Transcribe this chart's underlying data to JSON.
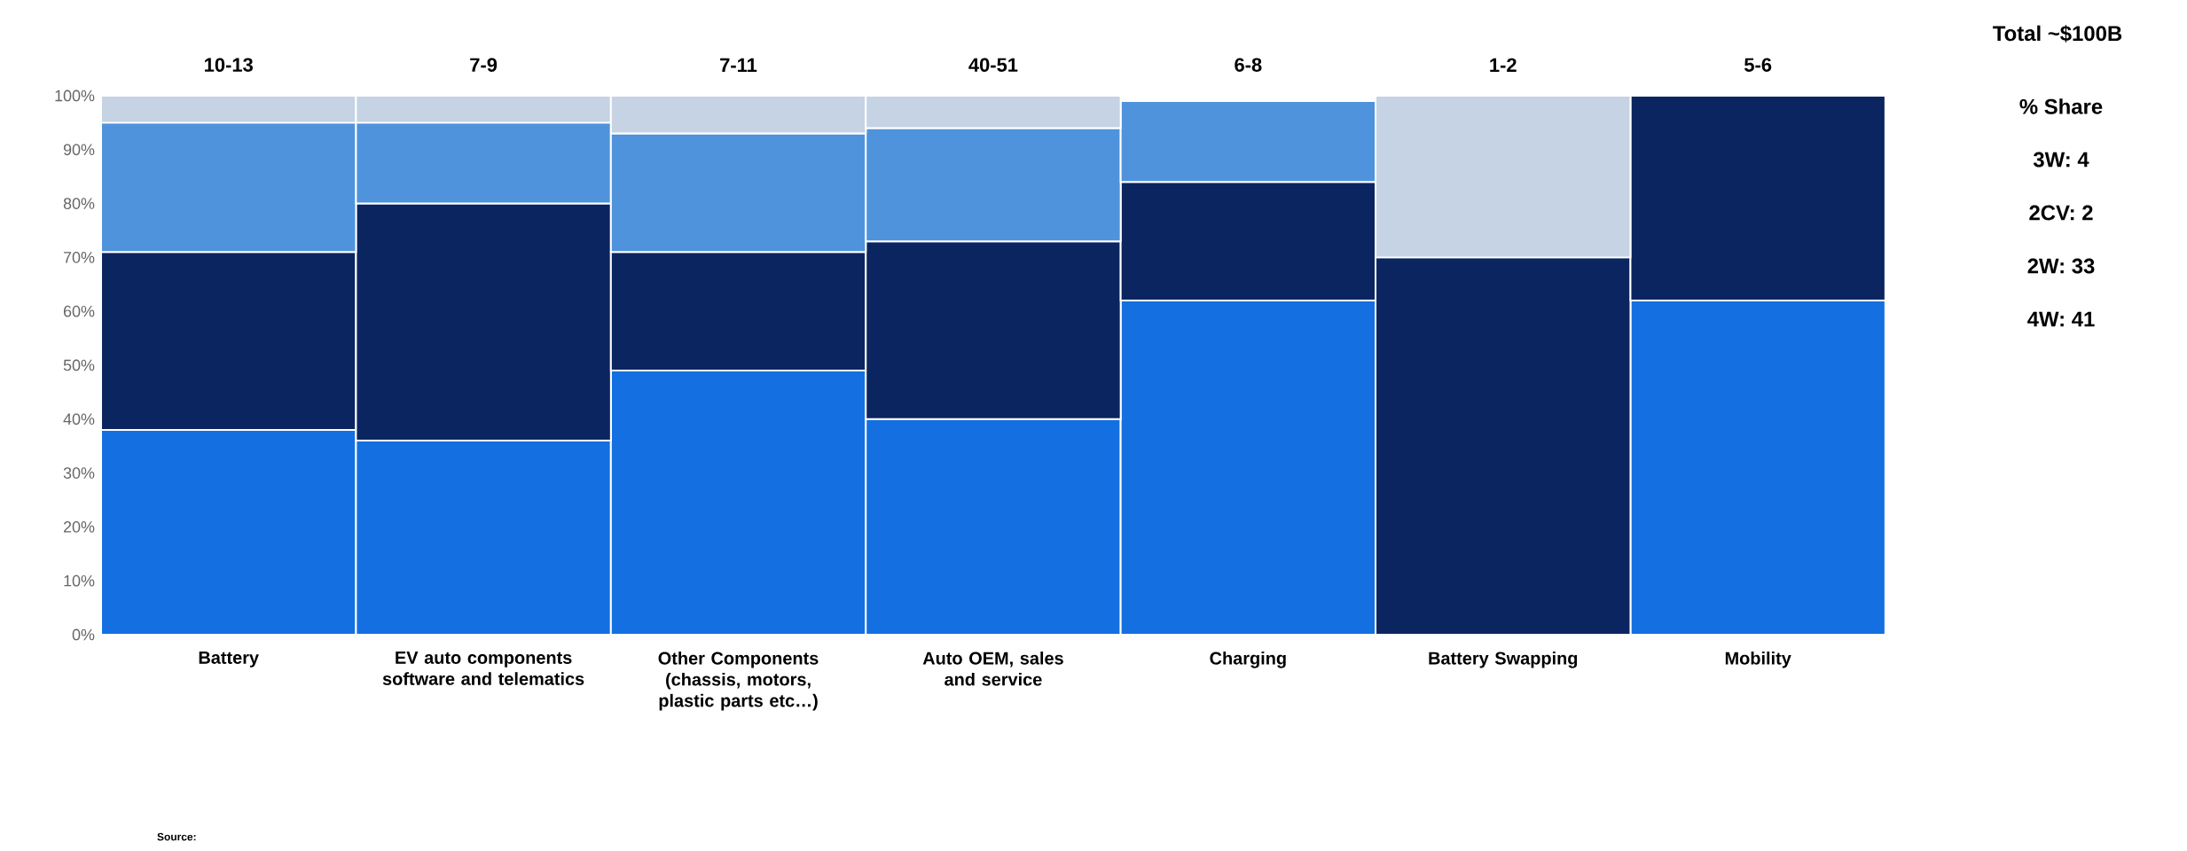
{
  "chart_data": {
    "type": "bar",
    "stacked": true,
    "categories": [
      "Battery",
      "EV auto components software and telematics",
      "Other Components (chassis, motors, plastic parts etc…)",
      "Auto OEM, sales and service",
      "Charging",
      "Battery Swapping",
      "Mobility"
    ],
    "series": [
      {
        "color": "#1470e0",
        "values": [
          38,
          36,
          49,
          40,
          62,
          null,
          62
        ]
      },
      {
        "color": "#0b2560",
        "values": [
          33,
          44,
          22,
          33,
          22,
          70,
          38
        ]
      },
      {
        "color": "#4f93dc",
        "values": [
          24,
          15,
          22,
          21,
          15,
          null,
          null
        ]
      },
      {
        "color": "#c5d3e4",
        "values": [
          5,
          5,
          7,
          6,
          null,
          30,
          null
        ]
      }
    ],
    "totals": [
      "10-13",
      "7-9",
      "7-11",
      "40-51",
      "6-8",
      "1-2",
      "5-6"
    ],
    "ylim": [
      0,
      100
    ],
    "yticks": [
      {
        "value": 0,
        "label": "0%"
      },
      {
        "value": 10,
        "label": "10%"
      },
      {
        "value": 20,
        "label": "20%"
      },
      {
        "value": 30,
        "label": "30%"
      },
      {
        "value": 40,
        "label": "40%"
      },
      {
        "value": 50,
        "label": "50%"
      },
      {
        "value": 60,
        "label": "60%"
      },
      {
        "value": 70,
        "label": "70%"
      },
      {
        "value": 80,
        "label": "80%"
      },
      {
        "value": 90,
        "label": "90%"
      },
      {
        "value": 100,
        "label": "100%"
      }
    ],
    "grid": false,
    "annotations": [
      "Total ~$100B",
      "% Share",
      "3W: 4",
      "2CV: 2",
      "2W: 33",
      "4W: 41",
      "Source:"
    ]
  }
}
